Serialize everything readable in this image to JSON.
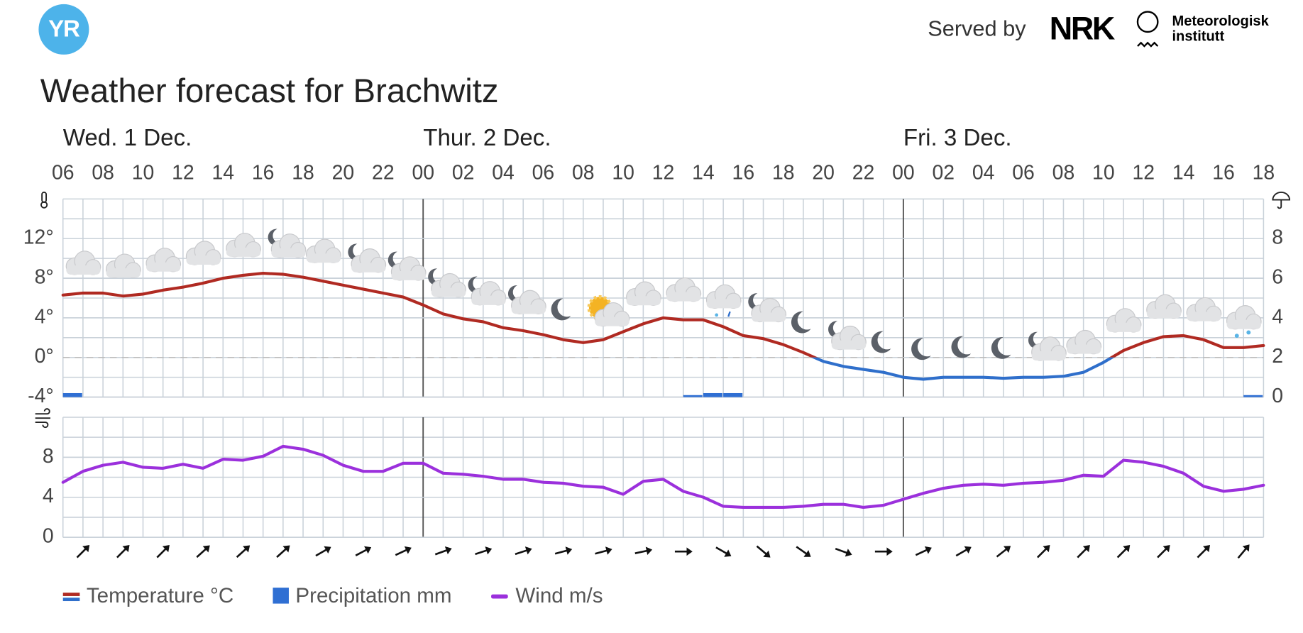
{
  "header": {
    "logo": "YR",
    "served_by": "Served by",
    "partner_1": "NRK",
    "partner_2_line_1": "Meteorologisk",
    "partner_2_line_2": "institutt"
  },
  "chart_data": [
    {
      "type": "line",
      "title": "Weather forecast for Brachwitz",
      "days": [
        "Wed. 1 Dec.",
        "Thur. 2 Dec.",
        "Fri. 3 Dec."
      ],
      "xticks": [
        "06",
        "08",
        "10",
        "12",
        "14",
        "16",
        "18",
        "20",
        "22",
        "00",
        "02",
        "04",
        "06",
        "08",
        "10",
        "12",
        "14",
        "16",
        "18",
        "20",
        "22",
        "00",
        "02",
        "04",
        "06",
        "08",
        "10",
        "12",
        "14",
        "16",
        "18"
      ],
      "ylim": [
        -4,
        16
      ],
      "yticks": [
        {
          "value": -4,
          "label": "-4°"
        },
        {
          "value": 0,
          "label": "0°"
        },
        {
          "value": 4,
          "label": "4°"
        },
        {
          "value": 8,
          "label": "8°"
        },
        {
          "value": 12,
          "label": "12°"
        }
      ],
      "y2lim": [
        0,
        10
      ],
      "y2ticks": [
        0,
        2,
        4,
        6,
        8
      ],
      "grid": true,
      "series": [
        {
          "name": "Temperature °C",
          "type": "line",
          "color": "#b02a22",
          "color_below_zero": "#2f6fcb",
          "values": [
            6.3,
            6.5,
            6.5,
            6.2,
            6.4,
            6.8,
            7.1,
            7.5,
            8.0,
            8.3,
            8.5,
            8.4,
            8.1,
            7.7,
            7.3,
            6.9,
            6.5,
            6.1,
            5.3,
            4.4,
            3.9,
            3.6,
            3.0,
            2.7,
            2.3,
            1.8,
            1.5,
            1.8,
            2.6,
            3.4,
            4.0,
            3.8,
            3.8,
            3.1,
            2.2,
            1.9,
            1.3,
            0.5,
            -0.4,
            -0.9,
            -1.2,
            -1.5,
            -2.0,
            -2.2,
            -2.0,
            -2.0,
            -2.0,
            -2.1,
            -2.0,
            -2.0,
            -1.9,
            -1.5,
            -0.5,
            0.7,
            1.5,
            2.1,
            2.2,
            1.8,
            1.0,
            1.0,
            1.2
          ]
        },
        {
          "name": "Precipitation mm",
          "type": "bar",
          "axis": "y2",
          "color": "#2f6fd3",
          "values": [
            0.2,
            0,
            0,
            0,
            0,
            0,
            0,
            0,
            0,
            0,
            0,
            0,
            0,
            0,
            0,
            0,
            0,
            0,
            0,
            0,
            0,
            0,
            0,
            0,
            0,
            0,
            0,
            0,
            0,
            0,
            0,
            0.1,
            0.2,
            0.2,
            0,
            0,
            0,
            0,
            0,
            0,
            0,
            0,
            0,
            0,
            0,
            0,
            0,
            0,
            0,
            0,
            0,
            0,
            0,
            0,
            0,
            0,
            0,
            0,
            0,
            0.1
          ]
        }
      ]
    },
    {
      "type": "line",
      "ylim": [
        0,
        12
      ],
      "yticks": [
        0,
        4,
        8
      ],
      "grid": true,
      "series": [
        {
          "name": "Wind m/s",
          "type": "line",
          "color": "#9b30dc",
          "values": [
            5.5,
            6.6,
            7.2,
            7.5,
            7.0,
            6.9,
            7.3,
            6.9,
            7.8,
            7.7,
            8.1,
            9.1,
            8.8,
            8.2,
            7.2,
            6.6,
            6.6,
            7.4,
            7.4,
            6.4,
            6.3,
            6.1,
            5.8,
            5.8,
            5.5,
            5.4,
            5.1,
            5.0,
            4.3,
            5.6,
            5.8,
            4.6,
            4.0,
            3.1,
            3.0,
            3.0,
            3.0,
            3.1,
            3.3,
            3.3,
            3.0,
            3.2,
            3.8,
            4.4,
            4.9,
            5.2,
            5.3,
            5.2,
            5.4,
            5.5,
            5.7,
            6.2,
            6.1,
            7.7,
            7.5,
            7.1,
            6.4,
            5.1,
            4.6,
            4.8,
            5.2
          ],
          "directions": [
            225,
            225,
            225,
            228,
            228,
            228,
            240,
            242,
            245,
            250,
            252,
            252,
            255,
            255,
            258,
            270,
            300,
            310,
            305,
            290,
            270,
            245,
            240,
            232,
            225,
            225,
            225,
            225,
            225,
            220
          ]
        }
      ]
    }
  ]
}
